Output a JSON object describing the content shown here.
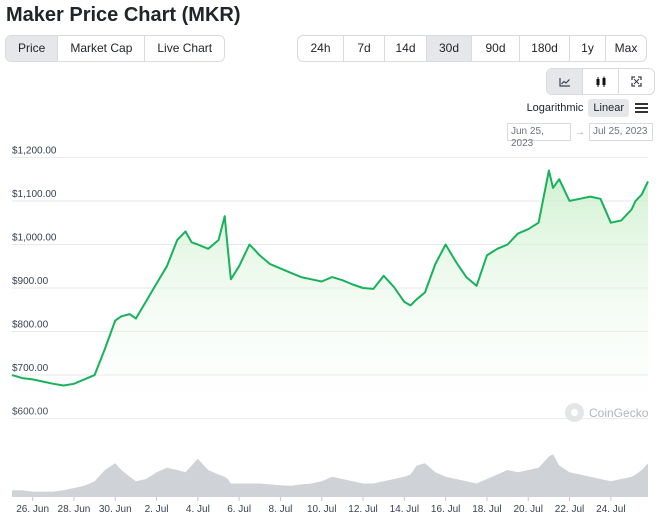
{
  "title": "Maker Price Chart (MKR)",
  "metric_tabs": [
    {
      "label": "Price",
      "active": true
    },
    {
      "label": "Market Cap",
      "active": false
    },
    {
      "label": "Live Chart",
      "active": false
    }
  ],
  "range_tabs": [
    {
      "label": "24h",
      "active": false
    },
    {
      "label": "7d",
      "active": false
    },
    {
      "label": "14d",
      "active": false
    },
    {
      "label": "30d",
      "active": true
    },
    {
      "label": "90d",
      "active": false
    },
    {
      "label": "180d",
      "active": false
    },
    {
      "label": "1y",
      "active": false
    },
    {
      "label": "Max",
      "active": false
    }
  ],
  "view_buttons": [
    {
      "icon": "line-chart-icon",
      "active": true
    },
    {
      "icon": "candlestick-icon",
      "active": false
    },
    {
      "icon": "fullscreen-icon",
      "active": false
    }
  ],
  "scale": {
    "options": [
      "Logarithmic",
      "Linear"
    ],
    "active": "Linear"
  },
  "date_range": {
    "from": "Jun 25, 2023",
    "to": "Jul 25, 2023",
    "separator": "→"
  },
  "watermark": "CoinGecko",
  "colors": {
    "line": "#18b25b",
    "fill": "#c8eec8",
    "volume": "#cfd3d8",
    "grid": "#e6e8ea"
  },
  "chart_data": {
    "type": "area",
    "title": "",
    "xlabel": "",
    "ylabel": "",
    "ylim": [
      560,
      1240
    ],
    "ytick_labels": [
      "$600.00",
      "$700.00",
      "$800.00",
      "$900.00",
      "$1,000.00",
      "$1,100.00",
      "$1,200.00"
    ],
    "ytick_values": [
      600,
      700,
      800,
      900,
      1000,
      1100,
      1200
    ],
    "xtick_labels": [
      "26. Jun",
      "28. Jun",
      "30. Jun",
      "2. Jul",
      "4. Jul",
      "6. Jul",
      "8. Jul",
      "10. Jul",
      "12. Jul",
      "14. Jul",
      "16. Jul",
      "18. Jul",
      "20. Jul",
      "22. Jul",
      "24. Jul"
    ],
    "xtick_days": [
      1,
      3,
      5,
      7,
      9,
      11,
      13,
      15,
      17,
      19,
      21,
      23,
      25,
      27,
      29
    ],
    "x_days": [
      0,
      0.5,
      1,
      1.5,
      2,
      2.5,
      3,
      3.5,
      4,
      4.5,
      5,
      5.3,
      5.7,
      6,
      6.5,
      7,
      7.5,
      8,
      8.4,
      8.7,
      9,
      9.5,
      10,
      10.3,
      10.45,
      10.6,
      11,
      11.5,
      12,
      12.5,
      13,
      13.5,
      14,
      14.5,
      15,
      15.5,
      16,
      16.5,
      17,
      17.5,
      18,
      18.5,
      19,
      19.3,
      19.6,
      20,
      20.5,
      21,
      21.5,
      22,
      22.5,
      23,
      23.5,
      24,
      24.5,
      25,
      25.5,
      26,
      26.2,
      26.5,
      27,
      27.5,
      28,
      28.5,
      29,
      29.5,
      30,
      30.2,
      30.5,
      30.8
    ],
    "price": [
      700,
      693,
      690,
      685,
      680,
      676,
      680,
      690,
      700,
      760,
      825,
      835,
      840,
      830,
      870,
      910,
      950,
      1010,
      1030,
      1005,
      1000,
      990,
      1010,
      1065,
      990,
      920,
      950,
      1000,
      975,
      955,
      945,
      935,
      925,
      920,
      915,
      925,
      918,
      908,
      900,
      898,
      928,
      902,
      868,
      860,
      874,
      890,
      955,
      1000,
      960,
      925,
      905,
      975,
      990,
      1000,
      1025,
      1035,
      1050,
      1170,
      1130,
      1150,
      1100,
      1105,
      1110,
      1105,
      1050,
      1055,
      1080,
      1100,
      1115,
      1145
    ],
    "volume_relative": [
      0.15,
      0.15,
      0.12,
      0.12,
      0.12,
      0.15,
      0.2,
      0.25,
      0.35,
      0.6,
      0.75,
      0.6,
      0.45,
      0.35,
      0.4,
      0.55,
      0.65,
      0.6,
      0.55,
      0.7,
      0.85,
      0.6,
      0.5,
      0.45,
      0.4,
      0.3,
      0.3,
      0.3,
      0.3,
      0.28,
      0.26,
      0.25,
      0.28,
      0.3,
      0.35,
      0.45,
      0.4,
      0.35,
      0.3,
      0.3,
      0.35,
      0.4,
      0.45,
      0.5,
      0.7,
      0.75,
      0.55,
      0.45,
      0.4,
      0.35,
      0.3,
      0.4,
      0.5,
      0.6,
      0.55,
      0.6,
      0.65,
      0.9,
      0.95,
      0.7,
      0.55,
      0.5,
      0.45,
      0.4,
      0.35,
      0.4,
      0.45,
      0.5,
      0.6,
      0.75
    ],
    "grid": true,
    "legend": "none"
  }
}
